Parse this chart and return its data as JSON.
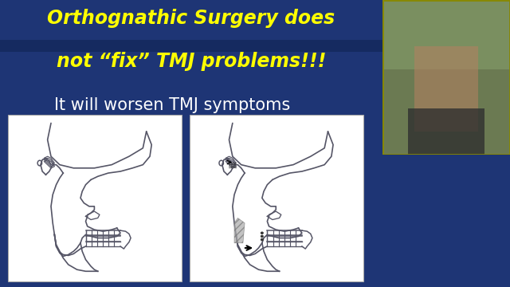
{
  "bg_color": "#1e3575",
  "title_line1": "Orthognathic Surgery does",
  "title_line2": "not “fix” TMJ problems!!!",
  "subtitle": "It will worsen TMJ symptoms",
  "title_color": "#ffff00",
  "subtitle_color": "#ffffff",
  "title_fontsize": 17,
  "subtitle_fontsize": 15,
  "slide_bg": "#1e3575",
  "diagram_bg": "#ffffff",
  "line_color": "#555566",
  "line_width": 1.2,
  "webcam_bg": "#4a5a3a",
  "right_black": "#000000"
}
